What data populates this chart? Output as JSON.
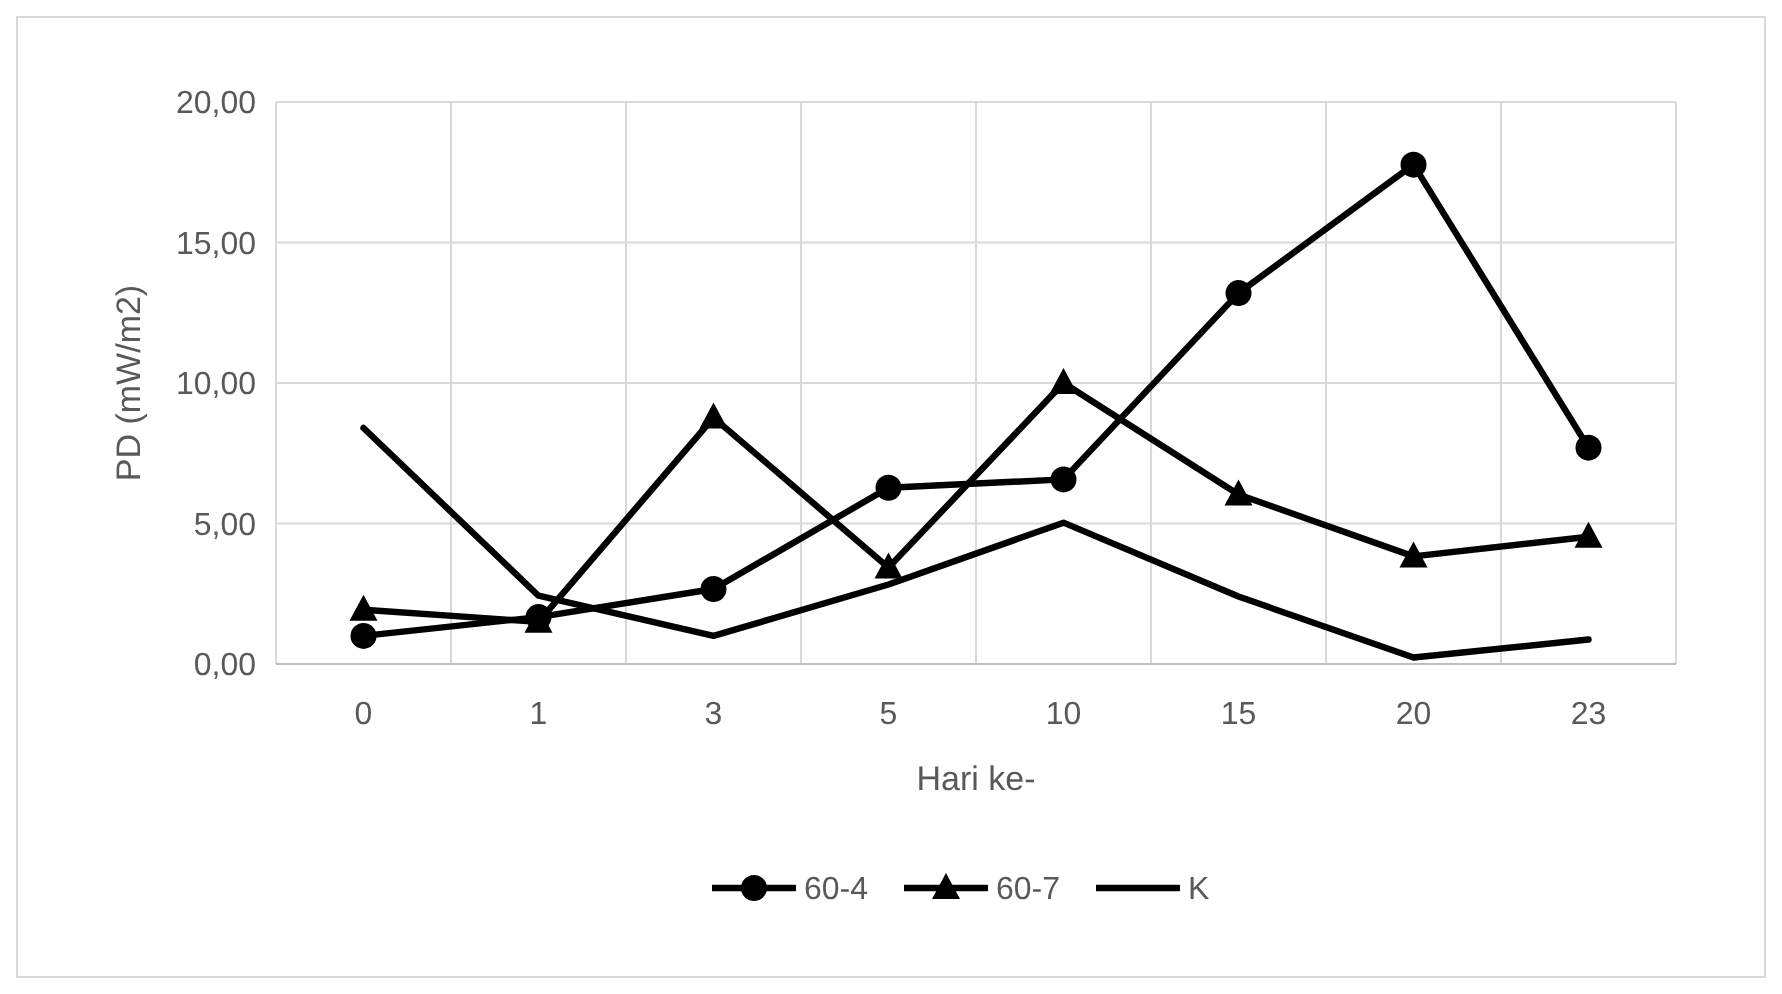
{
  "chart_data": {
    "type": "line",
    "xlabel": "Hari ke-",
    "ylabel": "PD (mW/m2)",
    "categories": [
      "0",
      "1",
      "3",
      "5",
      "10",
      "15",
      "20",
      "23"
    ],
    "series": [
      {
        "name": "60-4",
        "color": "#000000",
        "marker": "circle",
        "values": [
          1.0,
          1.67,
          2.67,
          6.27,
          6.57,
          13.2,
          17.77,
          7.7
        ]
      },
      {
        "name": "60-7",
        "color": "#000000",
        "marker": "triangle",
        "values": [
          1.93,
          1.5,
          8.77,
          3.43,
          10.0,
          6.03,
          3.83,
          4.53
        ]
      },
      {
        "name": "K",
        "color": "#000000",
        "marker": "none",
        "values": [
          8.4,
          2.43,
          1.0,
          2.83,
          5.03,
          2.4,
          0.23,
          0.87
        ]
      }
    ],
    "ylim": [
      0,
      20
    ],
    "yticks": [
      {
        "value": 0,
        "label": "0,00"
      },
      {
        "value": 5,
        "label": "5,00"
      },
      {
        "value": 10,
        "label": "10,00"
      },
      {
        "value": 15,
        "label": "15,00"
      },
      {
        "value": 20,
        "label": "20,00"
      }
    ],
    "grid": true,
    "legend": "bottom"
  }
}
